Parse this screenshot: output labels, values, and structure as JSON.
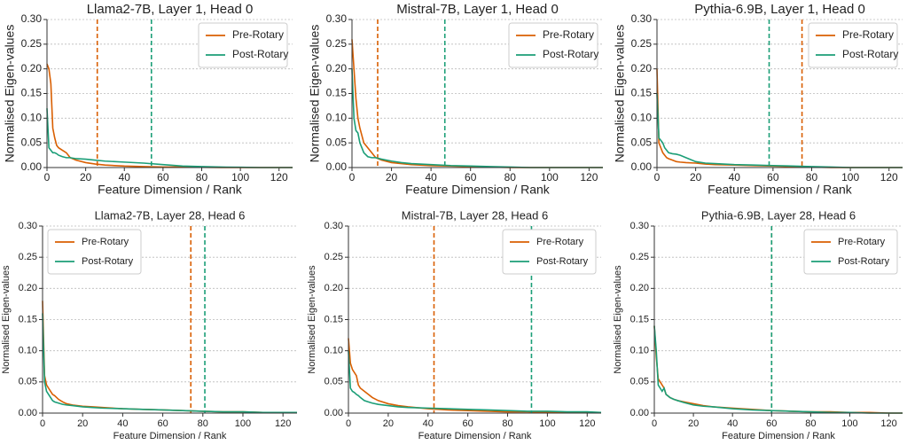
{
  "chart_data": [
    {
      "type": "line",
      "title": "Llama2-7B, Layer 1, Head 0",
      "x_label": "Feature Dimension / Rank",
      "y_label": "Normalised Eigen-values",
      "x": [
        0,
        1,
        2,
        3,
        4,
        5,
        6,
        8,
        10,
        12,
        15,
        20,
        25,
        30,
        40,
        50,
        60,
        70,
        80,
        90,
        100,
        110,
        120,
        127
      ],
      "series": [
        {
          "name": "Pre-Rotary",
          "color": "#d95f02",
          "vline": 26,
          "values": [
            0.21,
            0.2,
            0.17,
            0.08,
            0.06,
            0.045,
            0.04,
            0.035,
            0.03,
            0.02,
            0.015,
            0.01,
            0.007,
            0.005,
            0.003,
            0.002,
            0.001,
            0.001,
            0.0005,
            0,
            0,
            0,
            0,
            0
          ]
        },
        {
          "name": "Post-Rotary",
          "color": "#1b9e77",
          "vline": 54,
          "values": [
            0.12,
            0.04,
            0.035,
            0.03,
            0.03,
            0.028,
            0.025,
            0.022,
            0.02,
            0.02,
            0.018,
            0.017,
            0.015,
            0.013,
            0.011,
            0.009,
            0.006,
            0.003,
            0.002,
            0.001,
            0.0005,
            0,
            0,
            0
          ]
        }
      ],
      "xlim": [
        0,
        127
      ],
      "ylim": [
        0,
        0.3
      ],
      "xticks": [
        0,
        20,
        40,
        60,
        80,
        100,
        120
      ],
      "yticks": [
        {
          "value": 0,
          "label": "0.00"
        },
        {
          "value": 0.05,
          "label": "0.05"
        },
        {
          "value": 0.1,
          "label": "0.10"
        },
        {
          "value": 0.15,
          "label": "0.15"
        },
        {
          "value": 0.2,
          "label": "0.20"
        },
        {
          "value": 0.25,
          "label": "0.25"
        },
        {
          "value": 0.3,
          "label": "0.30"
        }
      ],
      "grid": "y",
      "legend": "upper right"
    },
    {
      "type": "line",
      "title": "Mistral-7B, Layer 1, Head 0",
      "x_label": "Feature Dimension / Rank",
      "y_label": "Normalised Eigen-values",
      "x": [
        0,
        1,
        2,
        3,
        4,
        5,
        6,
        8,
        10,
        12,
        15,
        20,
        25,
        30,
        40,
        50,
        60,
        70,
        80,
        90,
        100,
        110,
        120,
        127
      ],
      "series": [
        {
          "name": "Pre-Rotary",
          "color": "#d95f02",
          "vline": 13,
          "values": [
            0.26,
            0.2,
            0.14,
            0.1,
            0.08,
            0.065,
            0.05,
            0.04,
            0.03,
            0.02,
            0.015,
            0.01,
            0.008,
            0.006,
            0.004,
            0.003,
            0.002,
            0.001,
            0,
            0,
            0,
            0,
            0,
            0
          ]
        },
        {
          "name": "Post-Rotary",
          "color": "#1b9e77",
          "vline": 47,
          "values": [
            0.2,
            0.1,
            0.075,
            0.07,
            0.05,
            0.04,
            0.03,
            0.022,
            0.02,
            0.02,
            0.017,
            0.013,
            0.01,
            0.008,
            0.006,
            0.004,
            0.003,
            0.002,
            0.001,
            0,
            0,
            0,
            0,
            0
          ]
        }
      ],
      "xlim": [
        0,
        127
      ],
      "ylim": [
        0,
        0.3
      ],
      "xticks": [
        0,
        20,
        40,
        60,
        80,
        100,
        120
      ],
      "yticks": [
        {
          "value": 0,
          "label": "0.00"
        },
        {
          "value": 0.05,
          "label": "0.05"
        },
        {
          "value": 0.1,
          "label": "0.10"
        },
        {
          "value": 0.15,
          "label": "0.15"
        },
        {
          "value": 0.2,
          "label": "0.20"
        },
        {
          "value": 0.25,
          "label": "0.25"
        },
        {
          "value": 0.3,
          "label": "0.30"
        }
      ],
      "grid": "y",
      "legend": "upper right"
    },
    {
      "type": "line",
      "title": "Pythia-6.9B, Layer 1, Head 0",
      "x_label": "Feature Dimension / Rank",
      "y_label": "Normalised Eigen-values",
      "x": [
        0,
        1,
        2,
        3,
        4,
        5,
        6,
        8,
        10,
        12,
        15,
        20,
        25,
        30,
        40,
        50,
        60,
        70,
        80,
        90,
        100,
        110,
        120,
        127
      ],
      "series": [
        {
          "name": "Pre-Rotary",
          "color": "#d95f02",
          "vline": 75,
          "values": [
            0.2,
            0.05,
            0.04,
            0.03,
            0.025,
            0.02,
            0.018,
            0.015,
            0.012,
            0.011,
            0.01,
            0.009,
            0.007,
            0.006,
            0.005,
            0.004,
            0.003,
            0.002,
            0.001,
            0,
            0,
            0,
            0,
            0
          ]
        },
        {
          "name": "Post-Rotary",
          "color": "#1b9e77",
          "vline": 58,
          "values": [
            0.15,
            0.06,
            0.055,
            0.05,
            0.04,
            0.035,
            0.03,
            0.028,
            0.027,
            0.025,
            0.02,
            0.012,
            0.009,
            0.008,
            0.006,
            0.005,
            0.004,
            0.003,
            0.002,
            0.001,
            0,
            0,
            0,
            0
          ]
        }
      ],
      "xlim": [
        0,
        127
      ],
      "ylim": [
        0,
        0.3
      ],
      "xticks": [
        0,
        20,
        40,
        60,
        80,
        100,
        120
      ],
      "yticks": [
        {
          "value": 0,
          "label": "0.00"
        },
        {
          "value": 0.05,
          "label": "0.05"
        },
        {
          "value": 0.1,
          "label": "0.10"
        },
        {
          "value": 0.15,
          "label": "0.15"
        },
        {
          "value": 0.2,
          "label": "0.20"
        },
        {
          "value": 0.25,
          "label": "0.25"
        },
        {
          "value": 0.3,
          "label": "0.30"
        }
      ],
      "grid": "y",
      "legend": "upper right"
    },
    {
      "type": "line",
      "title": "Llama2-7B, Layer 28, Head 6",
      "x_label": "Feature Dimension / Rank",
      "y_label": "Normalised Eigen-values",
      "x": [
        0,
        1,
        2,
        3,
        4,
        5,
        6,
        8,
        10,
        12,
        15,
        20,
        25,
        30,
        40,
        50,
        60,
        70,
        80,
        90,
        100,
        110,
        120,
        127
      ],
      "series": [
        {
          "name": "Pre-Rotary",
          "color": "#d95f02",
          "vline": 74,
          "values": [
            0.18,
            0.06,
            0.045,
            0.04,
            0.035,
            0.03,
            0.028,
            0.022,
            0.018,
            0.015,
            0.013,
            0.011,
            0.01,
            0.009,
            0.007,
            0.006,
            0.005,
            0.004,
            0.003,
            0.002,
            0.002,
            0.001,
            0.001,
            0.001
          ]
        },
        {
          "name": "Post-Rotary",
          "color": "#1b9e77",
          "vline": 81,
          "values": [
            0.16,
            0.05,
            0.035,
            0.03,
            0.025,
            0.02,
            0.018,
            0.016,
            0.014,
            0.013,
            0.012,
            0.01,
            0.009,
            0.008,
            0.007,
            0.006,
            0.005,
            0.004,
            0.003,
            0.002,
            0.002,
            0.001,
            0.001,
            0.001
          ]
        }
      ],
      "xlim": [
        0,
        127
      ],
      "ylim": [
        0,
        0.3
      ],
      "xticks": [
        0,
        20,
        40,
        60,
        80,
        100,
        120
      ],
      "yticks": [
        {
          "value": 0,
          "label": "0.00"
        },
        {
          "value": 0.05,
          "label": "0.05"
        },
        {
          "value": 0.1,
          "label": "0.10"
        },
        {
          "value": 0.15,
          "label": "0.15"
        },
        {
          "value": 0.2,
          "label": "0.20"
        },
        {
          "value": 0.25,
          "label": "0.25"
        },
        {
          "value": 0.3,
          "label": "0.30"
        }
      ],
      "grid": "y",
      "legend": "upper left"
    },
    {
      "type": "line",
      "title": "Mistral-7B, Layer 28, Head 6",
      "x_label": "Feature Dimension / Rank",
      "y_label": "Normalised Eigen-values",
      "x": [
        0,
        1,
        2,
        3,
        4,
        5,
        6,
        8,
        10,
        12,
        15,
        20,
        25,
        30,
        40,
        50,
        60,
        70,
        80,
        90,
        100,
        110,
        120,
        127
      ],
      "series": [
        {
          "name": "Pre-Rotary",
          "color": "#d95f02",
          "vline": 43,
          "values": [
            0.12,
            0.08,
            0.07,
            0.065,
            0.06,
            0.045,
            0.04,
            0.035,
            0.03,
            0.025,
            0.02,
            0.015,
            0.012,
            0.01,
            0.007,
            0.005,
            0.004,
            0.003,
            0.002,
            0.002,
            0.001,
            0.001,
            0.001,
            0.001
          ]
        },
        {
          "name": "Post-Rotary",
          "color": "#1b9e77",
          "vline": 92,
          "values": [
            0.1,
            0.04,
            0.035,
            0.033,
            0.03,
            0.028,
            0.025,
            0.02,
            0.018,
            0.016,
            0.014,
            0.012,
            0.01,
            0.009,
            0.008,
            0.007,
            0.006,
            0.005,
            0.004,
            0.003,
            0.003,
            0.002,
            0.002,
            0.001
          ]
        }
      ],
      "xlim": [
        0,
        127
      ],
      "ylim": [
        0,
        0.3
      ],
      "xticks": [
        0,
        20,
        40,
        60,
        80,
        100,
        120
      ],
      "yticks": [
        {
          "value": 0,
          "label": "0.00"
        },
        {
          "value": 0.05,
          "label": "0.05"
        },
        {
          "value": 0.1,
          "label": "0.10"
        },
        {
          "value": 0.15,
          "label": "0.15"
        },
        {
          "value": 0.2,
          "label": "0.20"
        },
        {
          "value": 0.25,
          "label": "0.25"
        },
        {
          "value": 0.3,
          "label": "0.30"
        }
      ],
      "grid": "y",
      "legend": "upper right"
    },
    {
      "type": "line",
      "title": "Pythia-6.9B, Layer 28, Head 6",
      "x_label": "Feature Dimension / Rank",
      "y_label": "Normalised Eigen-values",
      "x": [
        0,
        1,
        2,
        3,
        4,
        5,
        6,
        8,
        10,
        12,
        15,
        20,
        25,
        30,
        40,
        50,
        60,
        70,
        80,
        90,
        100,
        110,
        120,
        127
      ],
      "series": [
        {
          "name": "Pre-Rotary",
          "color": "#d95f02",
          "vline": 60,
          "values": [
            0.14,
            0.09,
            0.055,
            0.05,
            0.045,
            0.04,
            0.03,
            0.025,
            0.022,
            0.02,
            0.018,
            0.015,
            0.012,
            0.01,
            0.008,
            0.006,
            0.004,
            0.003,
            0.002,
            0.002,
            0.001,
            0.001,
            0,
            0
          ]
        },
        {
          "name": "Post-Rotary",
          "color": "#1b9e77",
          "vline": 60,
          "values": [
            0.14,
            0.1,
            0.045,
            0.04,
            0.035,
            0.04,
            0.03,
            0.025,
            0.022,
            0.02,
            0.017,
            0.013,
            0.011,
            0.01,
            0.007,
            0.005,
            0.004,
            0.003,
            0.002,
            0.001,
            0.001,
            0,
            0,
            0
          ]
        }
      ],
      "xlim": [
        0,
        127
      ],
      "ylim": [
        0,
        0.3
      ],
      "xticks": [
        0,
        20,
        40,
        60,
        80,
        100,
        120
      ],
      "yticks": [
        {
          "value": 0,
          "label": "0.00"
        },
        {
          "value": 0.05,
          "label": "0.05"
        },
        {
          "value": 0.1,
          "label": "0.10"
        },
        {
          "value": 0.15,
          "label": "0.15"
        },
        {
          "value": 0.2,
          "label": "0.20"
        },
        {
          "value": 0.25,
          "label": "0.25"
        },
        {
          "value": 0.3,
          "label": "0.30"
        }
      ],
      "grid": "y",
      "legend": "upper right"
    }
  ]
}
